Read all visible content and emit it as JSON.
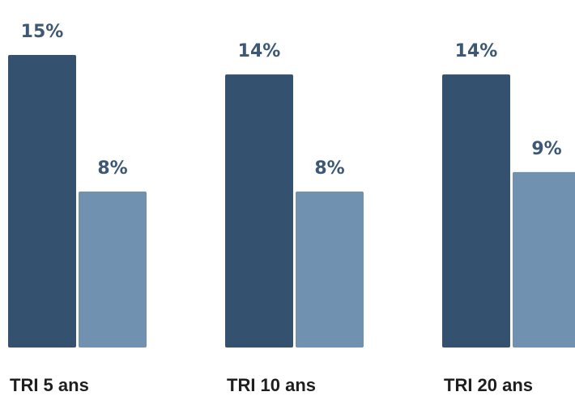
{
  "chart_data": {
    "type": "bar",
    "title": "",
    "xlabel": "",
    "ylabel": "",
    "categories": [
      "TRI 5 ans",
      "TRI 10 ans",
      "TRI 20 ans"
    ],
    "series": [
      {
        "values": [
          15,
          14,
          14
        ],
        "labels": [
          "15%",
          "14%",
          "14%"
        ],
        "color": "#34526f"
      },
      {
        "values": [
          8,
          8,
          9
        ],
        "labels": [
          "8%",
          "8%",
          "9%"
        ],
        "color": "#7191b0"
      }
    ],
    "ylim": [
      0,
      16
    ],
    "grid": false,
    "legend": false
  },
  "colors": {
    "value_label": "#3d5875",
    "category_label": "#1f1f1f"
  }
}
